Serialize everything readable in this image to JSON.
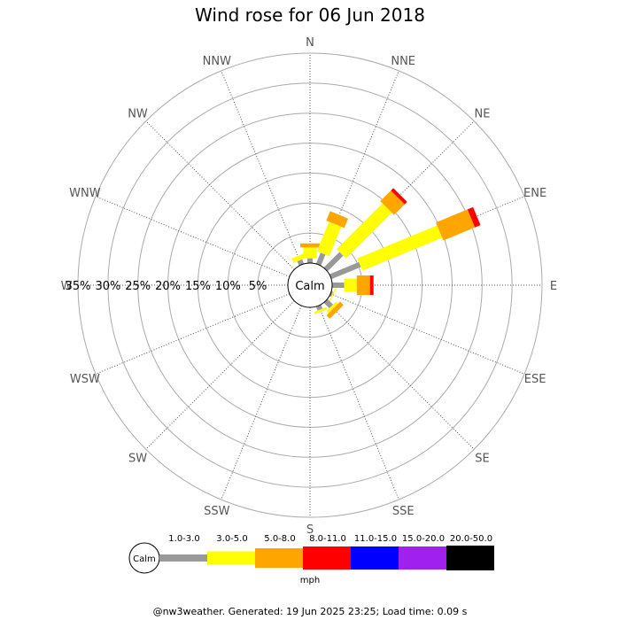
{
  "chart_data": {
    "type": "windrose",
    "title": "Wind rose for 06 Jun 2018",
    "directions": [
      "N",
      "NNE",
      "NE",
      "ENE",
      "E",
      "ESE",
      "SE",
      "SSE",
      "S",
      "SSW",
      "SW",
      "WSW",
      "W",
      "WNW",
      "NW",
      "NNW"
    ],
    "ring_labels": [
      "5%",
      "10%",
      "15%",
      "20%",
      "25%",
      "30%",
      "35%"
    ],
    "rmax_percent": 35,
    "calm_label": "Calm",
    "speed_bins": [
      {
        "label": "1.0-3.0",
        "color": "#999999"
      },
      {
        "label": "3.0-5.0",
        "color": "#ffff00"
      },
      {
        "label": "5.0-8.0",
        "color": "#ffa500"
      },
      {
        "label": "8.0-11.0",
        "color": "#ff0000"
      },
      {
        "label": "11.0-15.0",
        "color": "#0000ff"
      },
      {
        "label": "15.0-20.0",
        "color": "#a020f0"
      },
      {
        "label": "20.0-50.0",
        "color": "#000000"
      }
    ],
    "unit": "mph",
    "series": [
      {
        "direction": "N",
        "percents": [
          0.8,
          1.8,
          0.7,
          0,
          0,
          0,
          0
        ]
      },
      {
        "direction": "NNE",
        "percents": [
          2.0,
          5.3,
          1.7,
          0,
          0,
          0,
          0
        ]
      },
      {
        "direction": "NE",
        "percents": [
          3.7,
          10.8,
          2.5,
          0.6,
          0,
          0,
          0
        ]
      },
      {
        "direction": "ENE",
        "percents": [
          5.3,
          14.4,
          5.7,
          1.0,
          0,
          0,
          0
        ]
      },
      {
        "direction": "E",
        "percents": [
          2.0,
          2.1,
          2.2,
          0.6,
          0,
          0,
          0
        ]
      },
      {
        "direction": "ESE",
        "percents": [
          0.3,
          0.2,
          0,
          0,
          0,
          0,
          0
        ]
      },
      {
        "direction": "SE",
        "percents": [
          1.3,
          0.5,
          0.8,
          0,
          0,
          0,
          0
        ]
      },
      {
        "direction": "SSE",
        "percents": [
          0.7,
          0.4,
          0,
          0,
          0,
          0,
          0
        ]
      },
      {
        "direction": "S",
        "percents": [
          0,
          0,
          0,
          0,
          0,
          0,
          0
        ]
      },
      {
        "direction": "SSW",
        "percents": [
          0,
          0,
          0,
          0,
          0,
          0,
          0
        ]
      },
      {
        "direction": "SW",
        "percents": [
          0,
          0,
          0,
          0,
          0,
          0,
          0
        ]
      },
      {
        "direction": "WSW",
        "percents": [
          0,
          0,
          0,
          0,
          0,
          0,
          0
        ]
      },
      {
        "direction": "W",
        "percents": [
          0,
          0,
          0,
          0,
          0,
          0,
          0
        ]
      },
      {
        "direction": "WNW",
        "percents": [
          0,
          0,
          0,
          0,
          0,
          0,
          0
        ]
      },
      {
        "direction": "NW",
        "percents": [
          0,
          0,
          0,
          0,
          0,
          0,
          0
        ]
      },
      {
        "direction": "NNW",
        "percents": [
          0.8,
          0.8,
          0,
          0,
          0,
          0,
          0
        ]
      }
    ]
  },
  "footer": "@nw3weather. Generated: 19 Jun 2025 23:25; Load time: 0.09 s"
}
